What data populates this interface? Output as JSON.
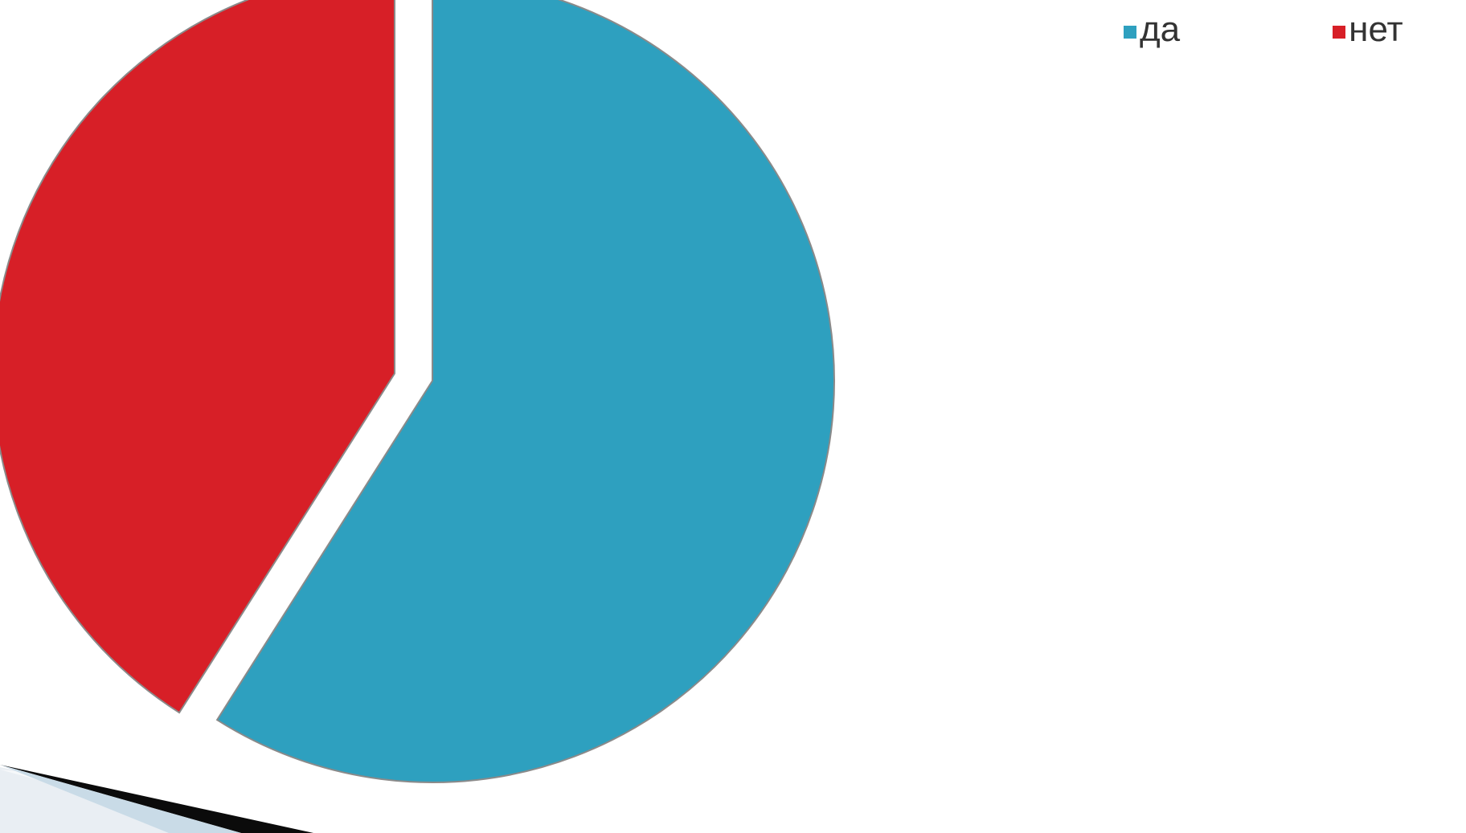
{
  "colors": {
    "background": "#ffffff",
    "slice_border": "#8a8a8a"
  },
  "chart_data": {
    "type": "pie",
    "title": "",
    "categories": [
      "да",
      "нет"
    ],
    "values": [
      59,
      41
    ],
    "colors": [
      "#2ea0bf",
      "#d71f27"
    ],
    "exploded": true,
    "legend": {
      "position": "top-right",
      "entries": [
        {
          "label": "да",
          "color": "#2ea0bf"
        },
        {
          "label": "нет",
          "color": "#d71f27"
        }
      ]
    }
  }
}
